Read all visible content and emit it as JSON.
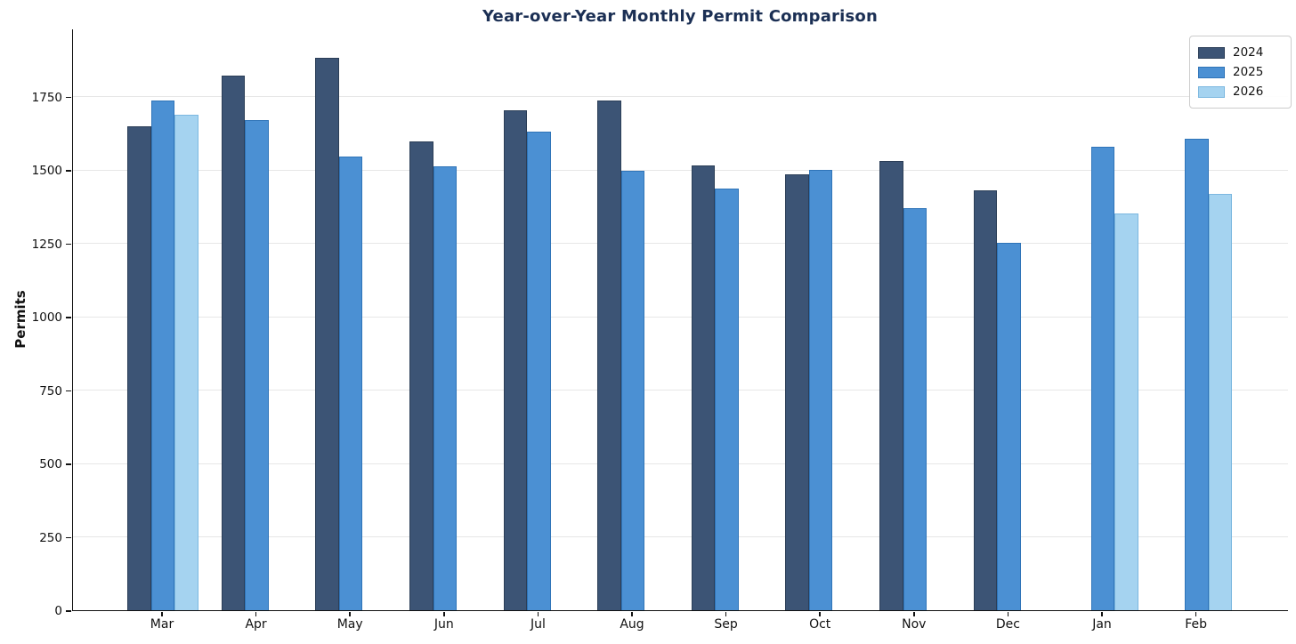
{
  "chart_data": {
    "type": "bar",
    "title": "Year-over-Year Monthly Permit Comparison",
    "xlabel": "",
    "ylabel": "Permits",
    "categories": [
      "Mar",
      "Apr",
      "May",
      "Jun",
      "Jul",
      "Aug",
      "Sep",
      "Oct",
      "Nov",
      "Dec",
      "Jan",
      "Feb"
    ],
    "series": [
      {
        "name": "2024",
        "color": "#3c5475",
        "edge_color": "#2b3e57",
        "values": [
          1650,
          1820,
          1881,
          1598,
          1702,
          1738,
          1516,
          1485,
          1529,
          1431,
          null,
          null
        ]
      },
      {
        "name": "2025",
        "color": "#4b90d3",
        "edge_color": "#2f74b8",
        "values": [
          1737,
          1669,
          1545,
          1512,
          1630,
          1496,
          1438,
          1499,
          1369,
          1253,
          1579,
          1606
        ]
      },
      {
        "name": "2026",
        "color": "#a5d3f0",
        "edge_color": "#7cb8e0",
        "values": [
          1689,
          null,
          null,
          null,
          null,
          null,
          null,
          null,
          null,
          null,
          1351,
          1419
        ]
      }
    ],
    "ylim": [
      0,
      1982
    ],
    "yticks": [
      0,
      250,
      500,
      750,
      1000,
      1250,
      1500,
      1750
    ],
    "grid": "horizontal",
    "legend_position": "upper right",
    "title_color": "#1b2f54",
    "gridline_color": "#e7e7e7"
  }
}
